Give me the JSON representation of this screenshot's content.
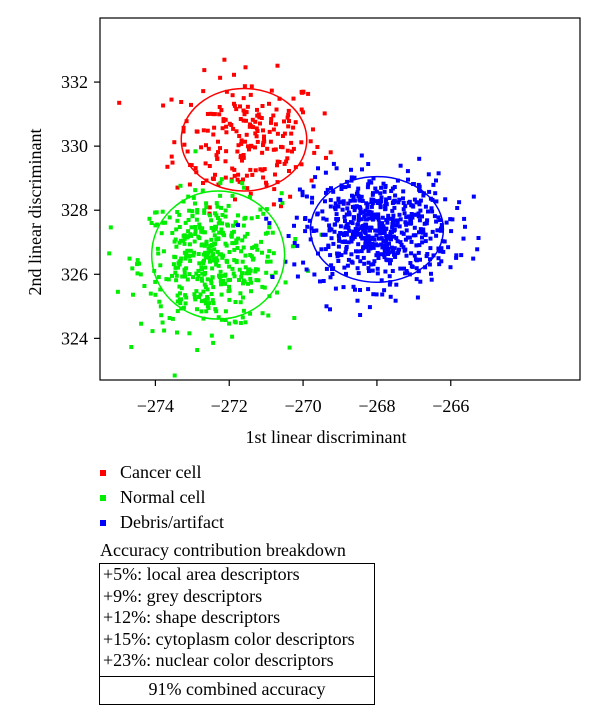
{
  "chart_data": {
    "type": "scatter",
    "xlabel": "1st linear discriminant",
    "ylabel": "2nd linear discriminant",
    "xlim": [
      -275.5,
      -262.5
    ],
    "ylim": [
      322.7,
      334
    ],
    "xticks": [
      -274,
      -272,
      -270,
      -268,
      -266
    ],
    "yticks": [
      324,
      326,
      328,
      330,
      332
    ],
    "xtick_labels": [
      "−274",
      "−272",
      "−270",
      "−268",
      "−266"
    ],
    "ytick_labels": [
      "324",
      "326",
      "328",
      "330",
      "332"
    ],
    "grid": false,
    "series": [
      {
        "name": "Cancer cell",
        "color": "#ff0000",
        "n": 220,
        "center": [
          -271.5,
          330.2
        ],
        "spread": [
          1.0,
          1.0
        ],
        "ellipse": {
          "center": [
            -271.6,
            330.2
          ],
          "radii": [
            1.7,
            1.6
          ]
        }
      },
      {
        "name": "Normal cell",
        "color": "#00ee00",
        "n": 430,
        "center": [
          -272.5,
          326.4
        ],
        "spread": [
          0.95,
          1.05
        ],
        "ellipse": {
          "center": [
            -272.3,
            326.6
          ],
          "radii": [
            1.8,
            2.0
          ]
        }
      },
      {
        "name": "Debris/artifact",
        "color": "#0000ff",
        "n": 620,
        "center": [
          -268.0,
          327.4
        ],
        "spread": [
          1.0,
          0.85
        ],
        "ellipse": {
          "center": [
            -268.0,
            327.4
          ],
          "radii": [
            1.8,
            1.65
          ]
        }
      }
    ]
  },
  "legend": {
    "items": [
      {
        "label": "Cancer cell",
        "color": "#ff0000"
      },
      {
        "label": "Normal cell",
        "color": "#00ee00"
      },
      {
        "label": "Debris/artifact",
        "color": "#0000ff"
      }
    ]
  },
  "breakdown": {
    "title": "Accuracy contribution breakdown",
    "rows": [
      "+5%: local area descriptors",
      "+9%: grey descriptors",
      "+12%: shape descriptors",
      "+15%: cytoplasm color descriptors",
      "+23%: nuclear color descriptors"
    ],
    "total": "91% combined accuracy"
  }
}
